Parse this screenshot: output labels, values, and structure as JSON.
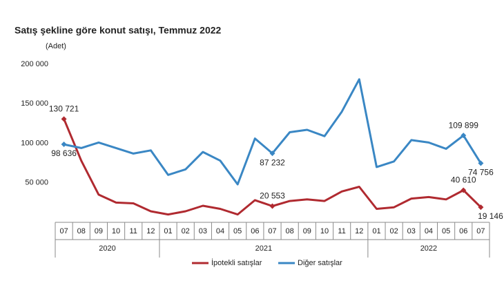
{
  "chart_data": {
    "type": "line",
    "title": "Satış şekline göre konut satışı, Temmuz 2022",
    "y_label": "(Adet)",
    "categories": [
      "07",
      "08",
      "09",
      "10",
      "11",
      "12",
      "01",
      "02",
      "03",
      "04",
      "05",
      "06",
      "07",
      "08",
      "09",
      "10",
      "11",
      "12",
      "01",
      "02",
      "03",
      "04",
      "05",
      "06",
      "07"
    ],
    "x_groups": [
      {
        "label": "2020",
        "count": 6
      },
      {
        "label": "2021",
        "count": 12
      },
      {
        "label": "2022",
        "count": 7
      }
    ],
    "ylim": [
      0,
      200000
    ],
    "yticks": [
      {
        "value": 50000,
        "label": "50 000"
      },
      {
        "value": 100000,
        "label": "100 000"
      },
      {
        "value": 150000,
        "label": "150 000"
      },
      {
        "value": 200000,
        "label": "200 000"
      }
    ],
    "grid": false,
    "legend": "bottom",
    "series": [
      {
        "name": "İpotekli satışlar",
        "color": "#b02a30",
        "values": [
          130721,
          78000,
          35000,
          25000,
          24000,
          14000,
          10000,
          14000,
          21000,
          17000,
          10000,
          28000,
          20553,
          27000,
          29000,
          27000,
          39000,
          45000,
          17000,
          19000,
          30000,
          32000,
          29000,
          40610,
          19146
        ],
        "value_labels": [
          "130 721",
          null,
          null,
          null,
          null,
          null,
          null,
          null,
          null,
          null,
          null,
          null,
          "20 553",
          null,
          null,
          null,
          null,
          null,
          null,
          null,
          null,
          null,
          null,
          "40 610",
          "19 146"
        ]
      },
      {
        "name": "Diğer satışlar",
        "color": "#3a87c4",
        "values": [
          98636,
          94000,
          101000,
          94000,
          87000,
          91000,
          60000,
          67000,
          89000,
          78000,
          48000,
          106000,
          87232,
          114000,
          117000,
          109000,
          140000,
          181000,
          70000,
          77000,
          104000,
          101000,
          93000,
          109899,
          74756
        ],
        "value_labels": [
          "98 636",
          null,
          null,
          null,
          null,
          null,
          null,
          null,
          null,
          null,
          null,
          null,
          "87 232",
          null,
          null,
          null,
          null,
          null,
          null,
          null,
          null,
          null,
          null,
          "109 899",
          "74 756"
        ]
      }
    ]
  }
}
